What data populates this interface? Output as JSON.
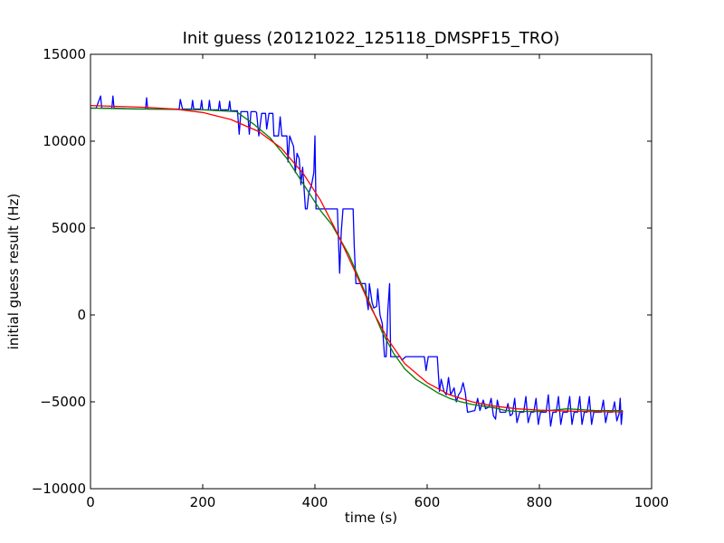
{
  "chart_data": {
    "type": "line",
    "title": "Init guess (20121022_125118_DMSPF15_TRO)",
    "xlabel": "time (s)",
    "ylabel": "initial guess result (Hz)",
    "xlim": [
      0,
      1000
    ],
    "ylim": [
      -10000,
      15000
    ],
    "xticks": [
      0,
      200,
      400,
      600,
      800,
      1000
    ],
    "yticks": [
      15000,
      10000,
      5000,
      0,
      -5000,
      -10000
    ],
    "xtick_labels": [
      "0",
      "200",
      "400",
      "600",
      "800",
      "1000"
    ],
    "ytick_labels": [
      "15000",
      "10000",
      "5000",
      "0",
      "−5000",
      "−10000"
    ],
    "grid": false,
    "series": [
      {
        "color": "#0000ff",
        "points": [
          [
            0,
            11900
          ],
          [
            10,
            11900
          ],
          [
            18,
            12600
          ],
          [
            20,
            11900
          ],
          [
            38,
            11900
          ],
          [
            40,
            12600
          ],
          [
            42,
            11900
          ],
          [
            80,
            11850
          ],
          [
            98,
            11850
          ],
          [
            100,
            12500
          ],
          [
            102,
            11850
          ],
          [
            158,
            11850
          ],
          [
            160,
            12400
          ],
          [
            164,
            11850
          ],
          [
            180,
            11850
          ],
          [
            182,
            12350
          ],
          [
            184,
            11850
          ],
          [
            196,
            11850
          ],
          [
            198,
            12350
          ],
          [
            200,
            11800
          ],
          [
            210,
            11800
          ],
          [
            212,
            12350
          ],
          [
            214,
            11800
          ],
          [
            228,
            11800
          ],
          [
            230,
            12300
          ],
          [
            232,
            11800
          ],
          [
            246,
            11800
          ],
          [
            248,
            12300
          ],
          [
            250,
            11750
          ],
          [
            262,
            11750
          ],
          [
            265,
            10400
          ],
          [
            268,
            11700
          ],
          [
            280,
            11700
          ],
          [
            283,
            10400
          ],
          [
            286,
            11700
          ],
          [
            294,
            11700
          ],
          [
            296,
            11650
          ],
          [
            300,
            10300
          ],
          [
            305,
            11600
          ],
          [
            312,
            11600
          ],
          [
            314,
            10700
          ],
          [
            318,
            11600
          ],
          [
            325,
            11600
          ],
          [
            327,
            10300
          ],
          [
            335,
            10300
          ],
          [
            338,
            11400
          ],
          [
            341,
            10300
          ],
          [
            350,
            10300
          ],
          [
            352,
            8800
          ],
          [
            355,
            10300
          ],
          [
            362,
            9700
          ],
          [
            365,
            8200
          ],
          [
            368,
            9300
          ],
          [
            372,
            9000
          ],
          [
            375,
            7500
          ],
          [
            378,
            8500
          ],
          [
            383,
            6100
          ],
          [
            386,
            6100
          ],
          [
            389,
            7000
          ],
          [
            394,
            7500
          ],
          [
            398,
            8200
          ],
          [
            400,
            10300
          ],
          [
            402,
            6100
          ],
          [
            440,
            6100
          ],
          [
            444,
            2400
          ],
          [
            447,
            4800
          ],
          [
            450,
            6100
          ],
          [
            468,
            6100
          ],
          [
            470,
            4000
          ],
          [
            473,
            1800
          ],
          [
            490,
            1800
          ],
          [
            492,
            1000
          ],
          [
            495,
            300
          ],
          [
            497,
            1800
          ],
          [
            502,
            700
          ],
          [
            505,
            400
          ],
          [
            510,
            500
          ],
          [
            512,
            1500
          ],
          [
            516,
            0
          ],
          [
            520,
            -500
          ],
          [
            524,
            -2400
          ],
          [
            527,
            -2400
          ],
          [
            530,
            300
          ],
          [
            533,
            1800
          ],
          [
            535,
            -2400
          ],
          [
            552,
            -2400
          ],
          [
            555,
            -2600
          ],
          [
            562,
            -2400
          ],
          [
            595,
            -2400
          ],
          [
            598,
            -3200
          ],
          [
            602,
            -2400
          ],
          [
            618,
            -2400
          ],
          [
            622,
            -4400
          ],
          [
            625,
            -3700
          ],
          [
            630,
            -4400
          ],
          [
            634,
            -4600
          ],
          [
            638,
            -3600
          ],
          [
            642,
            -4600
          ],
          [
            648,
            -4200
          ],
          [
            652,
            -5000
          ],
          [
            656,
            -4600
          ],
          [
            660,
            -4400
          ],
          [
            664,
            -3900
          ],
          [
            668,
            -4500
          ],
          [
            672,
            -5600
          ],
          [
            685,
            -5500
          ],
          [
            690,
            -4800
          ],
          [
            694,
            -5500
          ],
          [
            700,
            -4900
          ],
          [
            704,
            -5400
          ],
          [
            710,
            -5300
          ],
          [
            714,
            -4800
          ],
          [
            718,
            -5800
          ],
          [
            722,
            -6000
          ],
          [
            725,
            -4900
          ],
          [
            730,
            -5600
          ],
          [
            740,
            -5600
          ],
          [
            744,
            -5100
          ],
          [
            748,
            -5800
          ],
          [
            752,
            -5700
          ],
          [
            756,
            -4800
          ],
          [
            760,
            -6200
          ],
          [
            765,
            -5600
          ],
          [
            772,
            -5600
          ],
          [
            776,
            -4700
          ],
          [
            780,
            -6200
          ],
          [
            785,
            -5600
          ],
          [
            790,
            -5600
          ],
          [
            794,
            -4800
          ],
          [
            798,
            -6300
          ],
          [
            802,
            -5600
          ],
          [
            812,
            -5600
          ],
          [
            816,
            -4600
          ],
          [
            820,
            -6400
          ],
          [
            824,
            -5600
          ],
          [
            830,
            -5600
          ],
          [
            834,
            -4700
          ],
          [
            838,
            -6300
          ],
          [
            842,
            -5600
          ],
          [
            850,
            -5600
          ],
          [
            854,
            -4700
          ],
          [
            858,
            -6300
          ],
          [
            862,
            -5600
          ],
          [
            868,
            -5600
          ],
          [
            872,
            -4700
          ],
          [
            876,
            -6300
          ],
          [
            880,
            -5600
          ],
          [
            885,
            -5600
          ],
          [
            889,
            -4700
          ],
          [
            893,
            -6300
          ],
          [
            897,
            -5600
          ],
          [
            910,
            -5600
          ],
          [
            914,
            -4900
          ],
          [
            918,
            -6200
          ],
          [
            922,
            -5600
          ],
          [
            930,
            -5600
          ],
          [
            934,
            -5000
          ],
          [
            938,
            -6100
          ],
          [
            942,
            -5700
          ],
          [
            944,
            -4800
          ],
          [
            946,
            -6300
          ],
          [
            948,
            -5500
          ]
        ]
      },
      {
        "color": "#008000",
        "points": [
          [
            0,
            11900
          ],
          [
            100,
            11850
          ],
          [
            200,
            11800
          ],
          [
            260,
            11700
          ],
          [
            290,
            11000
          ],
          [
            320,
            10200
          ],
          [
            350,
            9000
          ],
          [
            380,
            7500
          ],
          [
            410,
            6000
          ],
          [
            430,
            5200
          ],
          [
            460,
            3500
          ],
          [
            480,
            2000
          ],
          [
            500,
            500
          ],
          [
            520,
            -1000
          ],
          [
            540,
            -2200
          ],
          [
            560,
            -3100
          ],
          [
            580,
            -3700
          ],
          [
            600,
            -4100
          ],
          [
            620,
            -4500
          ],
          [
            640,
            -4800
          ],
          [
            660,
            -5000
          ],
          [
            680,
            -5150
          ],
          [
            700,
            -5250
          ],
          [
            720,
            -5350
          ],
          [
            740,
            -5500
          ],
          [
            760,
            -5550
          ],
          [
            800,
            -5550
          ],
          [
            850,
            -5400
          ],
          [
            900,
            -5500
          ],
          [
            948,
            -5500
          ]
        ]
      },
      {
        "color": "#ff0000",
        "points": [
          [
            0,
            12050
          ],
          [
            50,
            12000
          ],
          [
            100,
            11950
          ],
          [
            150,
            11850
          ],
          [
            200,
            11650
          ],
          [
            250,
            11250
          ],
          [
            300,
            10550
          ],
          [
            340,
            9600
          ],
          [
            380,
            8100
          ],
          [
            410,
            6600
          ],
          [
            440,
            4700
          ],
          [
            470,
            2600
          ],
          [
            500,
            400
          ],
          [
            530,
            -1400
          ],
          [
            560,
            -2800
          ],
          [
            600,
            -3900
          ],
          [
            640,
            -4600
          ],
          [
            680,
            -5000
          ],
          [
            720,
            -5250
          ],
          [
            760,
            -5400
          ],
          [
            800,
            -5480
          ],
          [
            850,
            -5530
          ],
          [
            900,
            -5560
          ],
          [
            948,
            -5580
          ]
        ]
      }
    ]
  }
}
